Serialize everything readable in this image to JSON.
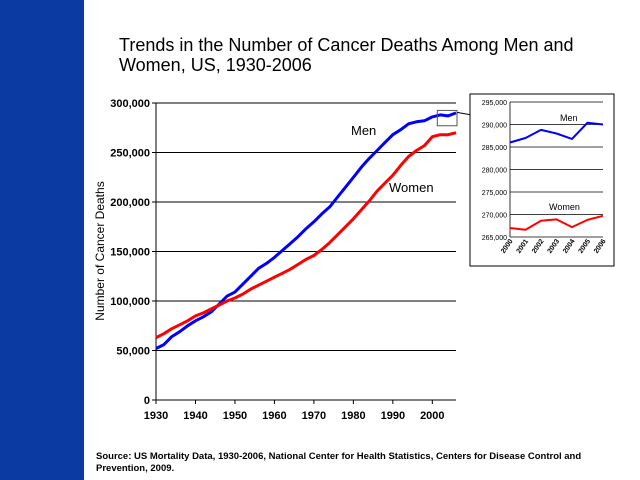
{
  "title": "Trends in the Number of Cancer Deaths Among Men and Women, US, 1930-2006",
  "source": "Source:  US Mortality Data, 1930-2006, National Center for Health Statistics, Centers for Disease Control and Prevention, 2009.",
  "colors": {
    "sidebar": "#0b3aa3",
    "men": "#0000ff",
    "women": "#ff0000"
  },
  "chart_data": [
    {
      "type": "line",
      "ylabel": "Number of Cancer Deaths",
      "xlim": [
        1930,
        2006
      ],
      "ylim": [
        0,
        300000
      ],
      "x_ticks": [
        "1930",
        "1940",
        "1950",
        "1960",
        "1970",
        "1980",
        "1990",
        "2000"
      ],
      "y_ticks": [
        "0",
        "50,000",
        "100,000",
        "150,000",
        "200,000",
        "250,000",
        "300,000"
      ],
      "grid": "horizontal",
      "series": [
        {
          "name": "Men",
          "x": [
            1930,
            1932,
            1934,
            1936,
            1938,
            1940,
            1942,
            1944,
            1946,
            1948,
            1950,
            1952,
            1954,
            1956,
            1958,
            1960,
            1962,
            1964,
            1966,
            1968,
            1970,
            1972,
            1974,
            1976,
            1978,
            1980,
            1982,
            1984,
            1986,
            1988,
            1990,
            1992,
            1994,
            1996,
            1998,
            2000,
            2002,
            2004,
            2006
          ],
          "values": [
            52000,
            56000,
            64000,
            69000,
            75000,
            80000,
            84000,
            89000,
            97000,
            105000,
            109000,
            117000,
            125000,
            133000,
            138000,
            144000,
            151000,
            158000,
            165000,
            173000,
            180000,
            188000,
            195000,
            205000,
            215000,
            225000,
            235000,
            244000,
            252000,
            260000,
            268000,
            273000,
            279000,
            281000,
            282000,
            286000,
            288000,
            287000,
            290000
          ]
        },
        {
          "name": "Women",
          "x": [
            1930,
            1932,
            1934,
            1936,
            1938,
            1940,
            1942,
            1944,
            1946,
            1948,
            1950,
            1952,
            1954,
            1956,
            1958,
            1960,
            1962,
            1964,
            1966,
            1968,
            1970,
            1972,
            1974,
            1976,
            1978,
            1980,
            1982,
            1984,
            1986,
            1988,
            1990,
            1992,
            1994,
            1996,
            1998,
            2000,
            2002,
            2004,
            2006
          ],
          "values": [
            63000,
            67000,
            72000,
            76000,
            80000,
            85000,
            88000,
            92000,
            96000,
            100000,
            103000,
            107000,
            112000,
            116000,
            120000,
            124000,
            128000,
            132000,
            137000,
            142000,
            146000,
            152000,
            159000,
            167000,
            175000,
            183000,
            192000,
            201000,
            211000,
            219000,
            227000,
            237000,
            246000,
            252000,
            257000,
            266000,
            268000,
            268000,
            270000
          ]
        }
      ],
      "annotations": [
        {
          "text": "Men",
          "series": "Men"
        },
        {
          "text": "Women",
          "series": "Women"
        }
      ]
    },
    {
      "type": "line",
      "xlim": [
        2000,
        2006
      ],
      "ylim": [
        265000,
        295000
      ],
      "x_ticks": [
        "2000",
        "2001",
        "2002",
        "2003",
        "2004",
        "2005",
        "2006"
      ],
      "y_ticks": [
        "265,000",
        "270,000",
        "275,000",
        "280,000",
        "285,000",
        "290,000",
        "295,000"
      ],
      "grid": "horizontal",
      "series": [
        {
          "name": "Men",
          "x": [
            2000,
            2001,
            2002,
            2003,
            2004,
            2005,
            2006
          ],
          "values": [
            286000,
            287000,
            288800,
            288000,
            286800,
            290400,
            290000
          ]
        },
        {
          "name": "Women",
          "x": [
            2000,
            2001,
            2002,
            2003,
            2004,
            2005,
            2006
          ],
          "values": [
            267000,
            266600,
            268600,
            268900,
            267200,
            268800,
            269700
          ]
        }
      ],
      "annotations": [
        {
          "text": "Men",
          "series": "Men"
        },
        {
          "text": "Women",
          "series": "Women"
        }
      ]
    }
  ]
}
